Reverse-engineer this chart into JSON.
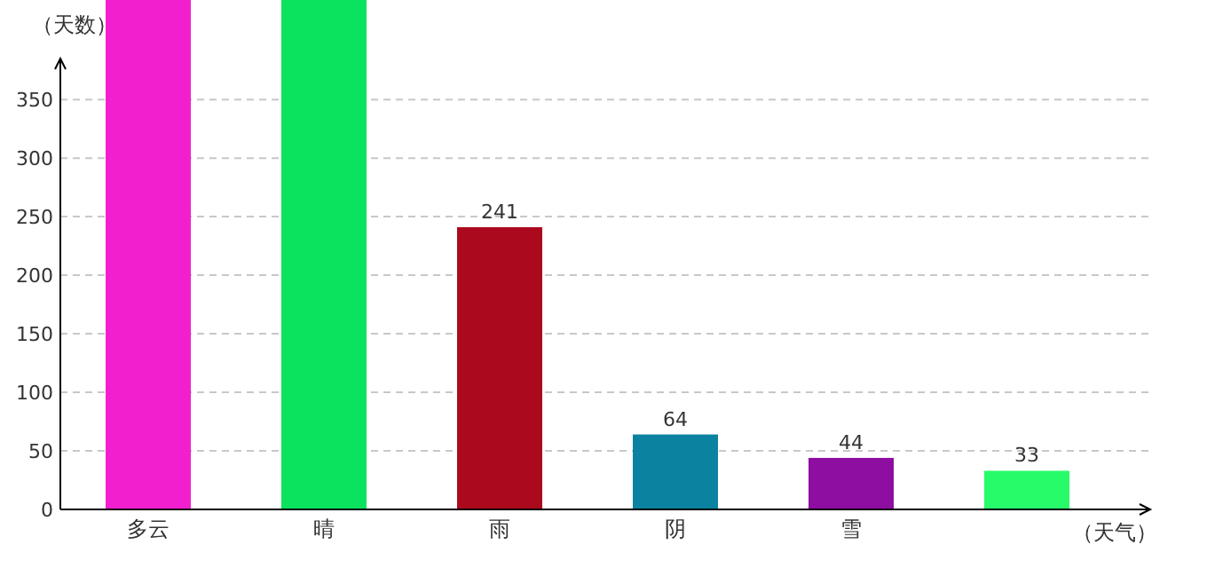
{
  "chart_data": {
    "type": "bar",
    "xlabel": "（天气）",
    "ylabel": "（天数）",
    "categories": [
      "多云",
      "晴",
      "雨",
      "阴",
      "雪",
      null
    ],
    "values": [
      435,
      435,
      241,
      64,
      44,
      33
    ],
    "colors": [
      "#f21fcf",
      "#0be35e",
      "#ab0a1e",
      "#0a82a0",
      "#8e0ea1",
      "#27fb6a"
    ],
    "value_labels": [
      null,
      null,
      "241",
      "64",
      "44",
      "33"
    ],
    "ylim": [
      0,
      435
    ],
    "yticks": [
      0,
      50,
      100,
      150,
      200,
      250,
      300,
      350
    ],
    "grid": "y"
  }
}
